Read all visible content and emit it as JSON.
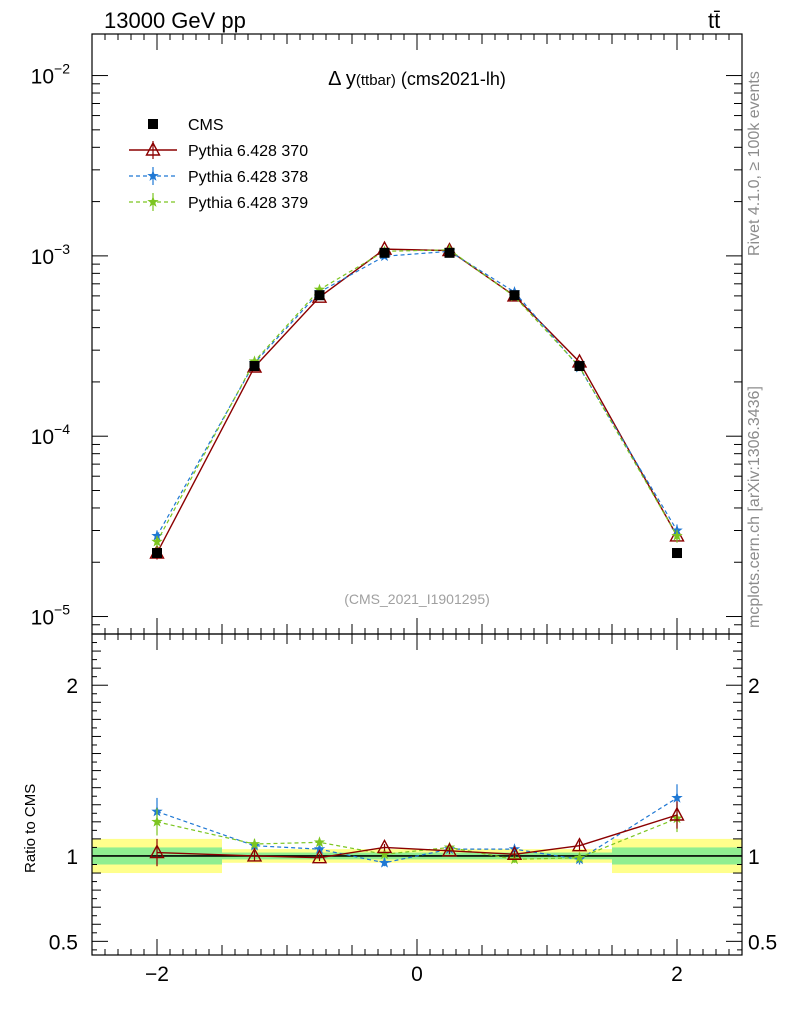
{
  "header": {
    "energy_label": "13000 GeV pp",
    "process_label": "tt̄"
  },
  "side_labels": {
    "rivet": "Rivet 4.1.0, ≥ 100k events",
    "source": "mcplots.cern.ch [arXiv:1306.3436]"
  },
  "chart_data": [
    {
      "type": "line",
      "panel": "main",
      "title": "Δ y(ttbar) (cms2021-lh)",
      "title_prefix": "Δ y",
      "title_sub": "(ttbar)",
      "title_suffix": " (cms2021-lh)",
      "analysis_tag": "(CMS_2021_I1901295)",
      "xlabel": "",
      "ylabel": "",
      "yscale": "log",
      "xlim": [
        -2.5,
        2.5
      ],
      "ylim": [
        8e-06,
        0.017
      ],
      "x_ticks": [
        -2,
        0,
        2
      ],
      "y_ticks": [
        {
          "mantissa": "10",
          "exponent": "−5",
          "value": 1e-05
        },
        {
          "mantissa": "10",
          "exponent": "−4",
          "value": 0.0001
        },
        {
          "mantissa": "10",
          "exponent": "−3",
          "value": 0.001
        },
        {
          "mantissa": "10",
          "exponent": "−2",
          "value": 0.01
        }
      ],
      "legend_position": "top-left",
      "x": [
        -2.0,
        -1.25,
        -0.75,
        -0.25,
        0.25,
        0.75,
        1.25,
        2.0
      ],
      "series": [
        {
          "name": "CMS",
          "color": "#000000",
          "marker": "square",
          "line": "none",
          "values": [
            2.25e-05,
            0.000245,
            0.000605,
            0.00104,
            0.00104,
            0.000605,
            0.000245,
            2.25e-05
          ]
        },
        {
          "name": "Pythia 6.428 370",
          "color": "#8b0000",
          "marker": "open-triangle",
          "line": "solid",
          "values": [
            2.25e-05,
            0.000242,
            0.00059,
            0.00109,
            0.00107,
            0.0006,
            0.000258,
            2.8e-05
          ],
          "errors": [
            1.8e-06,
            5e-06,
            8e-06,
            1e-05,
            1e-05,
            8e-06,
            5e-06,
            2.2e-06
          ]
        },
        {
          "name": "Pythia 6.428 378",
          "color": "#1f78d4",
          "marker": "star",
          "line": "dashed",
          "values": [
            2.8e-05,
            0.000255,
            0.00063,
            0.000995,
            0.00106,
            0.00063,
            0.00024,
            3e-05
          ],
          "errors": [
            2e-06,
            5e-06,
            8e-06,
            1e-05,
            1e-05,
            8e-06,
            5e-06,
            2.4e-06
          ]
        },
        {
          "name": "Pythia 6.428 379",
          "color": "#7cc520",
          "marker": "star",
          "line": "dashed",
          "values": [
            2.6e-05,
            0.00026,
            0.00065,
            0.00106,
            0.00108,
            0.000595,
            0.000243,
            2.8e-05
          ],
          "errors": [
            2e-06,
            5e-06,
            8e-06,
            1e-05,
            1e-05,
            8e-06,
            5e-06,
            2.3e-06
          ]
        }
      ]
    },
    {
      "type": "line",
      "panel": "ratio",
      "ylabel": "Ratio to CMS",
      "xlim": [
        -2.5,
        2.5
      ],
      "ylim": [
        0.42,
        2.3
      ],
      "x_ticks": [
        -2,
        0,
        2
      ],
      "y_ticks": [
        0.5,
        1,
        2
      ],
      "band_edges": [
        -2.5,
        -1.5,
        -1.0,
        -0.5,
        0.0,
        0.5,
        1.0,
        1.5,
        2.5
      ],
      "band_inner": [
        0.05,
        0.02,
        0.02,
        0.02,
        0.02,
        0.02,
        0.02,
        0.05
      ],
      "band_outer": [
        0.1,
        0.04,
        0.04,
        0.04,
        0.04,
        0.04,
        0.04,
        0.1
      ],
      "band_inner_color": "#90ee90",
      "band_outer_color": "#ffff8c",
      "x": [
        -2.0,
        -1.25,
        -0.75,
        -0.25,
        0.25,
        0.75,
        1.25,
        2.0
      ],
      "series": [
        {
          "name": "Pythia 6.428 370",
          "color": "#8b0000",
          "marker": "open-triangle",
          "line": "solid",
          "values": [
            1.02,
            1.0,
            0.99,
            1.05,
            1.03,
            1.01,
            1.06,
            1.24
          ],
          "errors": [
            0.08,
            0.03,
            0.02,
            0.02,
            0.02,
            0.02,
            0.03,
            0.08
          ]
        },
        {
          "name": "Pythia 6.428 378",
          "color": "#1f78d4",
          "marker": "star",
          "line": "dashed",
          "values": [
            1.26,
            1.06,
            1.04,
            0.96,
            1.04,
            1.04,
            0.98,
            1.34
          ],
          "errors": [
            0.08,
            0.03,
            0.02,
            0.02,
            0.02,
            0.02,
            0.03,
            0.08
          ]
        },
        {
          "name": "Pythia 6.428 379",
          "color": "#7cc520",
          "marker": "star",
          "line": "dashed",
          "values": [
            1.2,
            1.07,
            1.08,
            1.01,
            1.05,
            0.98,
            0.99,
            1.22
          ],
          "errors": [
            0.08,
            0.03,
            0.02,
            0.02,
            0.02,
            0.02,
            0.03,
            0.08
          ]
        }
      ]
    }
  ]
}
